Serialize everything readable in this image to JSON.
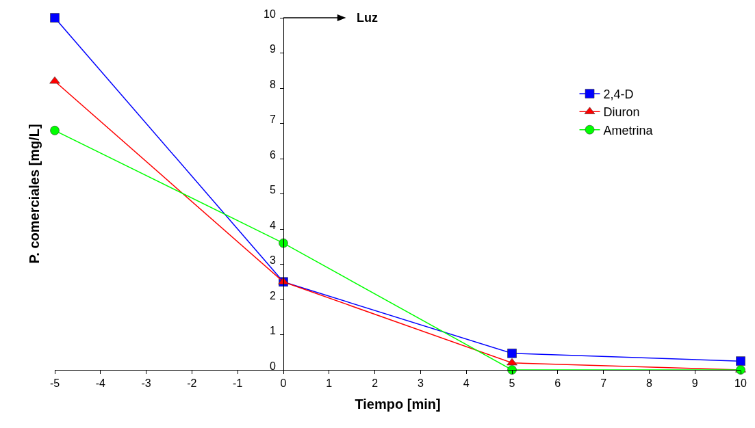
{
  "chart_data": {
    "type": "line",
    "xlabel": "Tiempo [min]",
    "ylabel": "P. comerciales [mg/L]",
    "x": [
      -5,
      0,
      5,
      10
    ],
    "series": [
      {
        "name": "2,4-D",
        "color": "#0000ff",
        "marker": "square",
        "values": [
          10,
          2.5,
          0.47,
          0.25
        ]
      },
      {
        "name": "Diuron",
        "color": "#ff0000",
        "marker": "triangle",
        "values": [
          8.2,
          2.5,
          0.2,
          0
        ]
      },
      {
        "name": "Ametrina",
        "color": "#00ff00",
        "marker": "circle",
        "values": [
          6.8,
          3.6,
          0,
          0
        ]
      }
    ],
    "xlim": [
      -5,
      10
    ],
    "xticks": [
      -5,
      -4,
      -3,
      -2,
      -1,
      0,
      1,
      2,
      3,
      4,
      5,
      6,
      7,
      8,
      9,
      10
    ],
    "ylim": [
      0,
      10
    ],
    "yticks": [
      0,
      1,
      2,
      3,
      4,
      5,
      6,
      7,
      8,
      9,
      10
    ],
    "annotations": [
      "Luz"
    ],
    "legend": "right"
  }
}
